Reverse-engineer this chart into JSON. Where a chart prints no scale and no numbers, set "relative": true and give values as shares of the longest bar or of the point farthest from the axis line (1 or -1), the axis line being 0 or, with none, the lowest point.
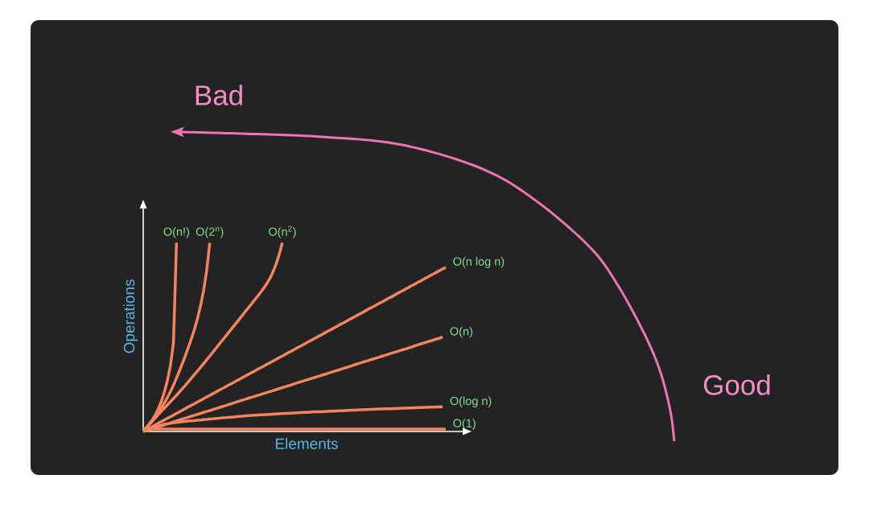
{
  "chart_data": {
    "type": "line",
    "xlabel": "Elements",
    "ylabel": "Operations",
    "relative": true,
    "annotations": [
      "Bad",
      "Good"
    ],
    "categories": [
      null,
      null,
      null,
      null,
      null,
      null,
      null,
      null,
      null,
      null,
      null,
      null,
      null,
      null,
      null,
      null,
      null,
      null,
      null,
      null,
      null,
      null,
      null,
      null,
      null,
      null,
      null,
      null,
      null,
      null,
      null,
      null,
      null,
      null,
      null,
      null,
      null,
      null,
      null,
      null,
      null,
      null,
      null,
      null,
      null,
      null,
      null,
      null,
      null,
      null,
      null,
      null,
      null,
      null,
      null,
      null,
      null,
      null,
      null,
      null,
      null,
      null,
      null,
      null,
      null,
      null,
      null,
      null,
      null,
      null,
      null,
      null,
      null,
      null,
      null,
      null,
      null,
      null,
      null,
      null,
      null,
      null,
      null,
      null,
      null,
      null,
      null,
      null,
      null,
      null,
      null,
      null,
      null,
      null,
      null,
      null,
      null,
      null,
      null,
      null,
      null
    ],
    "series": [
      {
        "name": "O(n!)",
        "color": "#f2845e",
        "values": [
          0,
          0.02,
          0.04,
          0.062,
          0.088,
          0.12,
          0.16,
          0.21,
          0.27,
          0.35,
          0.47,
          1,
          null,
          null,
          null,
          null,
          null,
          null,
          null,
          null,
          null,
          null,
          null,
          null,
          null,
          null,
          null,
          null,
          null,
          null,
          null,
          null,
          null,
          null,
          null,
          null,
          null,
          null,
          null,
          null,
          null,
          null,
          null,
          null,
          null,
          null,
          null,
          null,
          null,
          null,
          null,
          null,
          null,
          null,
          null,
          null,
          null,
          null,
          null,
          null,
          null,
          null,
          null,
          null,
          null,
          null,
          null,
          null,
          null,
          null,
          null,
          null,
          null,
          null,
          null,
          null,
          null,
          null,
          null,
          null,
          null,
          null,
          null,
          null,
          null,
          null,
          null,
          null,
          null,
          null,
          null,
          null,
          null,
          null,
          null,
          null,
          null,
          null,
          null,
          null,
          null
        ]
      },
      {
        "name": "O(2$^{n}$)",
        "color": "#f2845e",
        "values": [
          0,
          0.018,
          0.037,
          0.057,
          0.078,
          0.1,
          0.124,
          0.152,
          0.18,
          0.211,
          0.245,
          0.283,
          0.322,
          0.363,
          0.405,
          0.45,
          0.495,
          0.545,
          0.602,
          0.67,
          0.75,
          0.855,
          1,
          null,
          null,
          null,
          null,
          null,
          null,
          null,
          null,
          null,
          null,
          null,
          null,
          null,
          null,
          null,
          null,
          null,
          null,
          null,
          null,
          null,
          null,
          null,
          null,
          null,
          null,
          null,
          null,
          null,
          null,
          null,
          null,
          null,
          null,
          null,
          null,
          null,
          null,
          null,
          null,
          null,
          null,
          null,
          null,
          null,
          null,
          null,
          null,
          null,
          null,
          null,
          null,
          null,
          null,
          null,
          null,
          null,
          null,
          null,
          null,
          null,
          null,
          null,
          null,
          null,
          null,
          null,
          null,
          null,
          null,
          null,
          null,
          null,
          null,
          null,
          null,
          null,
          null
        ]
      },
      {
        "name": "O(n$^{2}$)",
        "color": "#f2845e",
        "values": [
          0,
          0.018,
          0.036,
          0.054,
          0.072,
          0.09,
          0.107,
          0.124,
          0.141,
          0.158,
          0.175,
          0.192,
          0.21,
          0.228,
          0.246,
          0.265,
          0.284,
          0.303,
          0.322,
          0.341,
          0.36,
          0.38,
          0.4,
          0.42,
          0.44,
          0.46,
          0.48,
          0.5,
          0.52,
          0.54,
          0.56,
          0.58,
          0.6,
          0.62,
          0.64,
          0.66,
          0.68,
          0.7,
          0.72,
          0.741,
          0.763,
          0.787,
          0.815,
          0.849,
          0.89,
          0.94,
          1,
          null,
          null,
          null,
          null,
          null,
          null,
          null,
          null,
          null,
          null,
          null,
          null,
          null,
          null,
          null,
          null,
          null,
          null,
          null,
          null,
          null,
          null,
          null,
          null,
          null,
          null,
          null,
          null,
          null,
          null,
          null,
          null,
          null,
          null,
          null,
          null,
          null,
          null,
          null,
          null,
          null,
          null,
          null,
          null,
          null,
          null,
          null,
          null,
          null,
          null,
          null,
          null,
          null,
          null
        ]
      },
      {
        "name": "O(n log n)",
        "color": "#f2845e",
        "values": [
          0,
          0.009,
          0.017,
          0.026,
          0.035,
          0.044,
          0.052,
          0.061,
          0.07,
          0.078,
          0.087,
          0.096,
          0.104,
          0.113,
          0.122,
          0.131,
          0.139,
          0.148,
          0.157,
          0.165,
          0.174,
          0.183,
          0.191,
          0.2,
          0.209,
          0.218,
          0.226,
          0.235,
          0.244,
          0.252,
          0.261,
          0.27,
          0.278,
          0.287,
          0.296,
          0.305,
          0.313,
          0.322,
          0.331,
          0.339,
          0.348,
          0.357,
          0.365,
          0.374,
          0.383,
          0.392,
          0.4,
          0.409,
          0.418,
          0.426,
          0.435,
          0.444,
          0.452,
          0.461,
          0.47,
          0.479,
          0.487,
          0.496,
          0.505,
          0.513,
          0.522,
          0.531,
          0.539,
          0.548,
          0.557,
          0.566,
          0.574,
          0.583,
          0.592,
          0.6,
          0.609,
          0.618,
          0.626,
          0.635,
          0.644,
          0.653,
          0.661,
          0.67,
          0.679,
          0.687,
          0.696,
          0.705,
          0.713,
          0.722,
          0.731,
          0.74,
          0.748,
          0.757,
          0.766,
          0.774,
          0.783,
          0.792,
          0.8,
          0.809,
          0.818,
          0.827,
          0.835,
          0.844,
          0.853,
          0.861,
          0.87
        ]
      },
      {
        "name": "O(n)",
        "color": "#f2845e",
        "values": [
          0,
          0.005,
          0.01,
          0.015,
          0.02,
          0.025,
          0.03,
          0.035,
          0.04,
          0.045,
          0.051,
          0.056,
          0.061,
          0.066,
          0.071,
          0.076,
          0.081,
          0.086,
          0.091,
          0.096,
          0.101,
          0.106,
          0.111,
          0.116,
          0.121,
          0.126,
          0.131,
          0.136,
          0.141,
          0.146,
          0.152,
          0.157,
          0.162,
          0.167,
          0.172,
          0.177,
          0.182,
          0.187,
          0.192,
          0.197,
          0.202,
          0.207,
          0.212,
          0.217,
          0.222,
          0.227,
          0.232,
          0.237,
          0.242,
          0.247,
          0.253,
          0.258,
          0.263,
          0.268,
          0.273,
          0.278,
          0.283,
          0.288,
          0.293,
          0.298,
          0.303,
          0.308,
          0.313,
          0.318,
          0.323,
          0.328,
          0.333,
          0.338,
          0.343,
          0.348,
          0.354,
          0.359,
          0.364,
          0.369,
          0.374,
          0.379,
          0.384,
          0.389,
          0.394,
          0.399,
          0.404,
          0.409,
          0.414,
          0.419,
          0.424,
          0.429,
          0.434,
          0.439,
          0.444,
          0.449,
          0.455,
          0.46,
          0.465,
          0.47,
          0.475,
          0.48,
          0.485,
          0.49,
          0.495,
          0.5,
          null
        ]
      },
      {
        "name": "O(log n)",
        "color": "#f2845e",
        "values": [
          0,
          0.006,
          0.012,
          0.018,
          0.023,
          0.028,
          0.034,
          0.038,
          0.041,
          0.044,
          0.046,
          0.048,
          0.05,
          0.052,
          0.053,
          0.055,
          0.056,
          0.058,
          0.06,
          0.061,
          0.063,
          0.064,
          0.066,
          0.067,
          0.069,
          0.07,
          0.072,
          0.073,
          0.075,
          0.076,
          0.077,
          0.079,
          0.08,
          0.081,
          0.083,
          0.084,
          0.085,
          0.086,
          0.087,
          0.088,
          0.089,
          0.09,
          0.091,
          0.092,
          0.093,
          0.094,
          0.095,
          0.096,
          0.096,
          0.097,
          0.098,
          0.099,
          0.1,
          0.101,
          0.101,
          0.102,
          0.103,
          0.104,
          0.105,
          0.105,
          0.106,
          0.107,
          0.108,
          0.108,
          0.109,
          0.11,
          0.11,
          0.111,
          0.112,
          0.113,
          0.113,
          0.114,
          0.115,
          0.115,
          0.116,
          0.117,
          0.117,
          0.118,
          0.119,
          0.119,
          0.12,
          0.121,
          0.121,
          0.122,
          0.122,
          0.123,
          0.124,
          0.124,
          0.125,
          0.125,
          0.126,
          0.127,
          0.127,
          0.128,
          0.128,
          0.129,
          0.129,
          0.13,
          0.13,
          0.131,
          null
        ]
      },
      {
        "name": "O(1)",
        "color": "#f2845e",
        "values": [
          0.013,
          0.013,
          0.013,
          0.013,
          0.013,
          0.013,
          0.013,
          0.013,
          0.013,
          0.013,
          0.013,
          0.013,
          0.013,
          0.013,
          0.013,
          0.013,
          0.013,
          0.013,
          0.013,
          0.013,
          0.013,
          0.013,
          0.013,
          0.013,
          0.013,
          0.013,
          0.013,
          0.013,
          0.013,
          0.013,
          0.013,
          0.013,
          0.013,
          0.013,
          0.013,
          0.013,
          0.013,
          0.013,
          0.013,
          0.013,
          0.013,
          0.013,
          0.013,
          0.013,
          0.013,
          0.013,
          0.013,
          0.013,
          0.013,
          0.013,
          0.013,
          0.013,
          0.013,
          0.013,
          0.013,
          0.013,
          0.013,
          0.013,
          0.013,
          0.013,
          0.013,
          0.013,
          0.013,
          0.013,
          0.013,
          0.013,
          0.013,
          0.013,
          0.013,
          0.013,
          0.013,
          0.013,
          0.013,
          0.013,
          0.013,
          0.013,
          0.013,
          0.013,
          0.013,
          0.013,
          0.013,
          0.013,
          0.013,
          0.013,
          0.013,
          0.013,
          0.013,
          0.013,
          0.013,
          0.013,
          0.013,
          0.013,
          0.013,
          0.013,
          0.013,
          0.013,
          0.013,
          0.013,
          0.013,
          0.013,
          0.013
        ]
      }
    ]
  }
}
